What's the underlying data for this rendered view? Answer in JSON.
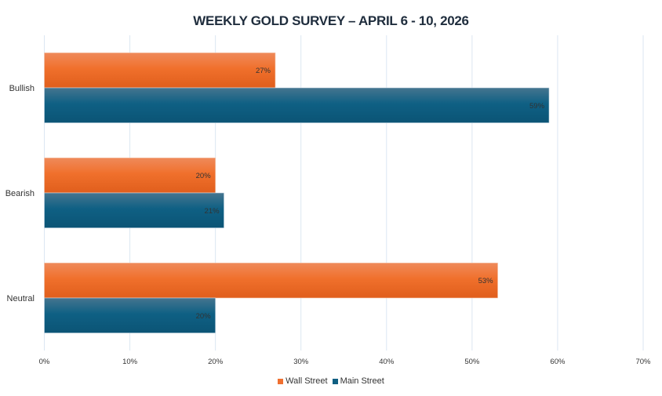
{
  "chart_data": {
    "type": "bar",
    "orientation": "horizontal",
    "title": "WEEKLY GOLD SURVEY – APRIL 6 - 10, 2026",
    "categories": [
      "Bullish",
      "Bearish",
      "Neutral"
    ],
    "series": [
      {
        "name": "Wall Street",
        "values": [
          27,
          20,
          53
        ],
        "labels": [
          "27%",
          "20%",
          "53%"
        ],
        "color": "#f07030"
      },
      {
        "name": "Main Street",
        "values": [
          59,
          21,
          20
        ],
        "labels": [
          "59%",
          "21%",
          "20%"
        ],
        "color": "#0f5f82"
      }
    ],
    "xlim": [
      0,
      70
    ],
    "xticks": [
      "0%",
      "10%",
      "20%",
      "30%",
      "40%",
      "50%",
      "60%",
      "70%"
    ],
    "grid": true,
    "legend": "bottom",
    "xlabel": "",
    "ylabel": ""
  }
}
